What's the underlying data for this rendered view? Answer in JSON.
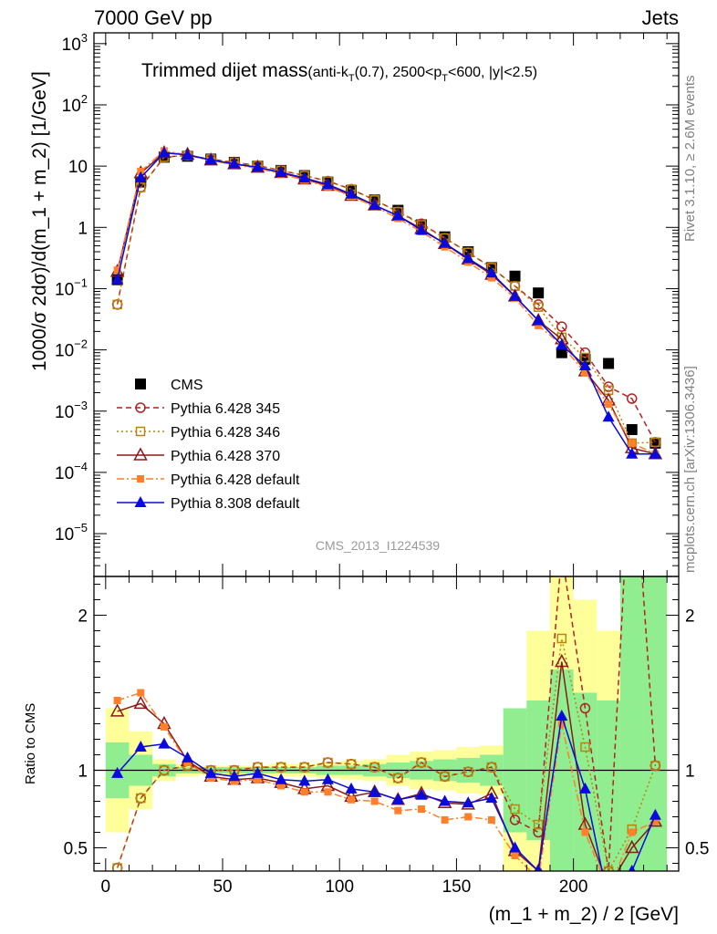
{
  "header": {
    "left": "7000 GeV pp",
    "right": "Jets"
  },
  "side_labels": {
    "rivet": "Rivet 3.1.10, ≥ 2.6M events",
    "mcplots": "mcplots.cern.ch [arXiv:1306.3436]"
  },
  "watermark": "CMS_2013_I1224539",
  "chart_data": [
    {
      "type": "scatter",
      "panel": "main",
      "title": {
        "main": "Trimmed dijet mass",
        "detail_pre": "(anti-k",
        "detail_sub1": "T",
        "detail_mid": "(0.7), 2500<p",
        "detail_sub2": "T",
        "detail_post": "<600, |y|<2.5)"
      },
      "ylabel": "1000/σ 2dσ)/d(m_1 + m_2) [1/GeV]",
      "xlabel": "(m_1 + m_2) / 2 [GeV]",
      "yscale": "log",
      "xlim": [
        -5,
        245
      ],
      "ylim": [
        2e-06,
        1500
      ],
      "x_ticks": [
        0,
        50,
        100,
        150,
        200
      ],
      "y_ticks": [
        {
          "value": 1e-05,
          "base": "10",
          "exp": "−5"
        },
        {
          "value": 0.0001,
          "base": "10",
          "exp": "−4"
        },
        {
          "value": 0.001,
          "base": "10",
          "exp": "−3"
        },
        {
          "value": 0.01,
          "base": "10",
          "exp": "−2"
        },
        {
          "value": 0.1,
          "base": "10",
          "exp": "−1"
        },
        {
          "value": 1,
          "base": "1",
          "exp": ""
        },
        {
          "value": 10,
          "base": "10",
          "exp": ""
        },
        {
          "value": 100,
          "base": "10",
          "exp": "2"
        },
        {
          "value": 1000,
          "base": "10",
          "exp": "3"
        }
      ],
      "x": [
        5,
        15,
        25,
        35,
        45,
        55,
        65,
        75,
        85,
        95,
        105,
        115,
        125,
        135,
        145,
        155,
        165,
        175,
        185,
        195,
        205,
        215,
        225,
        235
      ],
      "series": [
        {
          "name": "CMS",
          "color": "#000000",
          "marker": "square",
          "line": "none",
          "values": [
            0.14,
            5.5,
            14.0,
            14.5,
            13.0,
            11.5,
            10.0,
            8.5,
            7.0,
            5.5,
            4.0,
            2.8,
            1.9,
            1.1,
            0.7,
            0.4,
            0.22,
            0.16,
            0.085,
            0.009,
            0.007,
            0.006,
            0.0005,
            0.0003
          ]
        },
        {
          "name": "Pythia 6.428 345",
          "color": "#b22222",
          "marker": "open-circle",
          "line": "dashed",
          "values": [
            0.055,
            4.5,
            14.0,
            15.0,
            13.0,
            11.5,
            10.2,
            8.5,
            7.0,
            5.7,
            4.2,
            2.8,
            1.8,
            1.15,
            0.67,
            0.39,
            0.22,
            0.11,
            0.055,
            0.024,
            0.009,
            0.0025,
            0.0016,
            0.00031
          ]
        },
        {
          "name": "Pythia 6.428 346",
          "color": "#b8860b",
          "marker": "open-square",
          "line": "dotted",
          "values": [
            0.055,
            4.5,
            14.0,
            15.0,
            13.0,
            11.5,
            10.2,
            8.5,
            7.0,
            5.7,
            4.2,
            2.8,
            1.8,
            1.1,
            0.67,
            0.39,
            0.22,
            0.11,
            0.05,
            0.016,
            0.0075,
            0.0022,
            0.0003,
            0.00031
          ]
        },
        {
          "name": "Pythia 6.428 370",
          "color": "#8b1a1a",
          "marker": "open-triangle",
          "line": "solid",
          "values": [
            0.19,
            7.7,
            16.5,
            15.5,
            12.5,
            10.8,
            9.5,
            7.8,
            6.1,
            4.8,
            3.3,
            2.3,
            1.55,
            0.95,
            0.54,
            0.3,
            0.17,
            0.075,
            0.03,
            0.015,
            0.0045,
            0.0015,
            0.00025,
            0.0002
          ]
        },
        {
          "name": "Pythia 6.428 default",
          "color": "#ff7f2a",
          "marker": "filled-square",
          "line": "dashdot",
          "values": [
            0.2,
            8.2,
            17.8,
            15.2,
            12.3,
            10.5,
            9.2,
            7.5,
            5.9,
            4.6,
            3.2,
            2.2,
            1.4,
            0.85,
            0.48,
            0.27,
            0.15,
            0.07,
            0.025,
            0.012,
            0.0042,
            0.0013,
            0.0003,
            0.0002
          ]
        },
        {
          "name": "Pythia 8.308 default",
          "color": "#0a0adc",
          "marker": "filled-triangle",
          "line": "solid",
          "values": [
            0.14,
            6.5,
            16.5,
            15.2,
            12.6,
            10.9,
            9.6,
            7.9,
            6.4,
            5.0,
            3.5,
            2.3,
            1.55,
            0.9,
            0.55,
            0.31,
            0.18,
            0.075,
            0.03,
            0.012,
            0.0055,
            0.0008,
            0.0002,
            0.0002
          ]
        }
      ]
    },
    {
      "type": "line",
      "panel": "ratio",
      "ylabel": "Ratio to CMS",
      "xlabel": "(m_1 + m_2) / 2 [GeV]",
      "ylim": [
        0.35,
        2.25
      ],
      "y_ticks": [
        0.5,
        1,
        2
      ],
      "reference": 1,
      "x": [
        5,
        15,
        25,
        35,
        45,
        55,
        65,
        75,
        85,
        95,
        105,
        115,
        125,
        135,
        145,
        155,
        165,
        175,
        185,
        195,
        205,
        215,
        225,
        235
      ],
      "band_outer": {
        "color": "#ffff99",
        "low": [
          0.6,
          0.75,
          0.93,
          0.96,
          0.97,
          0.97,
          0.97,
          0.96,
          0.96,
          0.95,
          0.94,
          0.93,
          0.9,
          0.88,
          0.87,
          0.85,
          0.84,
          0.35,
          0.35,
          0.35,
          0.35,
          0.35,
          0.35,
          0.35
        ],
        "high": [
          1.4,
          1.25,
          1.07,
          1.04,
          1.03,
          1.03,
          1.03,
          1.04,
          1.04,
          1.05,
          1.06,
          1.07,
          1.1,
          1.12,
          1.13,
          1.15,
          1.16,
          1.35,
          1.9,
          2.25,
          2.1,
          1.9,
          2.25,
          2.25
        ]
      },
      "band_inner": {
        "color": "#90ee90",
        "low": [
          0.82,
          0.9,
          0.96,
          0.98,
          0.98,
          0.98,
          0.98,
          0.98,
          0.98,
          0.97,
          0.97,
          0.96,
          0.95,
          0.94,
          0.93,
          0.92,
          0.9,
          0.6,
          0.55,
          0.35,
          0.35,
          0.35,
          0.35,
          0.35
        ],
        "high": [
          1.18,
          1.1,
          1.04,
          1.02,
          1.02,
          1.02,
          1.02,
          1.02,
          1.02,
          1.03,
          1.03,
          1.04,
          1.05,
          1.06,
          1.07,
          1.08,
          1.1,
          1.4,
          1.45,
          1.65,
          1.5,
          1.45,
          2.25,
          2.25
        ]
      },
      "series": [
        {
          "name": "Pythia 6.428 345",
          "color": "#b22222",
          "marker": "open-circle",
          "line": "dashed",
          "values": [
            0.37,
            0.82,
            1.0,
            1.03,
            1.0,
            1.0,
            1.02,
            1.02,
            1.02,
            1.05,
            1.04,
            1.02,
            0.95,
            1.05,
            0.96,
            0.99,
            1.02,
            0.68,
            0.6,
            2.4,
            1.4,
            0.35,
            3.2,
            1.03
          ]
        },
        {
          "name": "Pythia 6.428 346",
          "color": "#b8860b",
          "marker": "open-square",
          "line": "dotted",
          "values": [
            0.37,
            0.82,
            1.0,
            1.03,
            1.0,
            1.0,
            1.02,
            1.02,
            1.02,
            1.05,
            1.04,
            1.02,
            0.95,
            1.05,
            0.96,
            0.99,
            1.02,
            0.75,
            0.65,
            1.85,
            1.15,
            0.35,
            0.62,
            1.03
          ]
        },
        {
          "name": "Pythia 6.428 370",
          "color": "#8b1a1a",
          "marker": "open-triangle",
          "line": "solid",
          "values": [
            1.38,
            1.43,
            1.3,
            1.06,
            0.96,
            0.94,
            0.95,
            0.92,
            0.88,
            0.9,
            0.83,
            0.86,
            0.81,
            0.85,
            0.79,
            0.78,
            0.85,
            0.48,
            0.35,
            1.7,
            0.65,
            0.25,
            0.5,
            0.67
          ]
        },
        {
          "name": "Pythia 6.428 default",
          "color": "#ff7f2a",
          "marker": "filled-square",
          "line": "dashdot",
          "values": [
            1.45,
            1.5,
            1.28,
            1.05,
            0.95,
            0.93,
            0.94,
            0.9,
            0.86,
            0.86,
            0.81,
            0.8,
            0.74,
            0.75,
            0.68,
            0.7,
            0.68,
            0.45,
            0.3,
            1.3,
            0.6,
            0.22,
            0.6,
            0.67
          ]
        },
        {
          "name": "Pythia 8.308 default",
          "color": "#0a0adc",
          "marker": "filled-triangle",
          "line": "solid",
          "values": [
            0.98,
            1.15,
            1.17,
            1.08,
            0.98,
            0.96,
            0.98,
            0.94,
            0.93,
            0.94,
            0.88,
            0.86,
            0.81,
            0.84,
            0.8,
            0.79,
            0.82,
            0.5,
            0.35,
            1.35,
            0.88,
            0.15,
            0.35,
            0.71
          ]
        }
      ]
    }
  ]
}
